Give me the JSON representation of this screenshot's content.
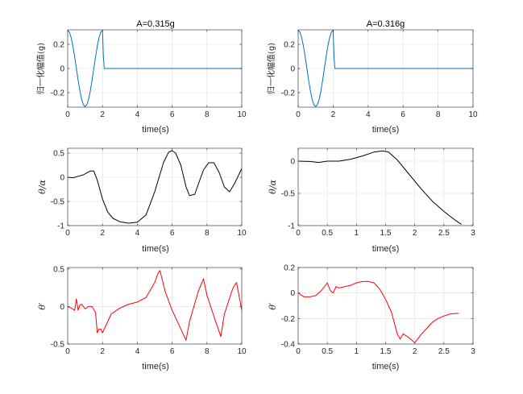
{
  "figure": {
    "background": "#ffffff"
  },
  "chart_data": [
    {
      "type": "line",
      "title": "A=0.315g",
      "xlabel": "time(s)",
      "ylabel": "归一化幅值(g)",
      "xlim": [
        0,
        10
      ],
      "ylim": [
        -0.32,
        0.32
      ],
      "xticks": [
        0,
        2,
        4,
        6,
        8,
        10
      ],
      "yticks": [
        -0.2,
        0,
        0.2
      ],
      "xtick_labels": [
        "0",
        "2",
        "4",
        "6",
        "8",
        "10"
      ],
      "ytick_labels": [
        "-0.2",
        "0",
        "0.2"
      ],
      "grid": true,
      "series": [
        {
          "color": "#0072BD",
          "x": [
            0,
            0.1,
            0.2,
            0.3,
            0.4,
            0.5,
            0.6,
            0.7,
            0.8,
            0.9,
            1.0,
            1.1,
            1.2,
            1.3,
            1.4,
            1.5,
            1.6,
            1.7,
            1.8,
            1.9,
            2.0,
            2.05,
            2.1,
            3,
            4,
            5,
            6,
            7,
            8,
            9,
            10
          ],
          "y": [
            0.315,
            0.3,
            0.255,
            0.185,
            0.097,
            0.0,
            -0.097,
            -0.185,
            -0.255,
            -0.3,
            -0.315,
            -0.3,
            -0.255,
            -0.185,
            -0.097,
            0.0,
            0.097,
            0.185,
            0.255,
            0.3,
            0.315,
            0.1,
            0,
            0,
            0,
            0,
            0,
            0,
            0,
            0,
            0
          ]
        }
      ]
    },
    {
      "type": "line",
      "title": "A=0.316g",
      "xlabel": "time(s)",
      "ylabel": "归一化幅值(g)",
      "xlim": [
        0,
        10
      ],
      "ylim": [
        -0.32,
        0.32
      ],
      "xticks": [
        0,
        2,
        4,
        6,
        8,
        10
      ],
      "yticks": [
        -0.2,
        0,
        0.2
      ],
      "xtick_labels": [
        "0",
        "2",
        "4",
        "6",
        "8",
        "10"
      ],
      "ytick_labels": [
        "-0.2",
        "0",
        "0.2"
      ],
      "grid": true,
      "series": [
        {
          "color": "#0072BD",
          "x": [
            0,
            0.1,
            0.2,
            0.3,
            0.4,
            0.5,
            0.6,
            0.7,
            0.8,
            0.9,
            1.0,
            1.1,
            1.2,
            1.3,
            1.4,
            1.5,
            1.6,
            1.7,
            1.8,
            1.9,
            2.0,
            2.05,
            2.1,
            3,
            4,
            5,
            6,
            7,
            8,
            9,
            10
          ],
          "y": [
            0.316,
            0.301,
            0.256,
            0.186,
            0.098,
            0.0,
            -0.098,
            -0.186,
            -0.256,
            -0.301,
            -0.316,
            -0.301,
            -0.256,
            -0.186,
            -0.098,
            0.0,
            0.098,
            0.186,
            0.256,
            0.301,
            0.316,
            0.1,
            0,
            0,
            0,
            0,
            0,
            0,
            0,
            0,
            0
          ]
        }
      ]
    },
    {
      "type": "line",
      "title": "",
      "xlabel": "time(s)",
      "ylabel": "θ/α",
      "xlim": [
        0,
        10
      ],
      "ylim": [
        -1,
        0.6
      ],
      "xticks": [
        0,
        2,
        4,
        6,
        8,
        10
      ],
      "yticks": [
        -1,
        -0.5,
        0,
        0.5
      ],
      "xtick_labels": [
        "0",
        "2",
        "4",
        "6",
        "8",
        "10"
      ],
      "ytick_labels": [
        "-1",
        "-0.5",
        "0",
        "0.5"
      ],
      "grid": true,
      "series": [
        {
          "color": "#000000",
          "x": [
            0,
            0.3,
            0.6,
            0.9,
            1.1,
            1.3,
            1.5,
            1.7,
            2.0,
            2.3,
            2.6,
            3.0,
            3.5,
            4.0,
            4.5,
            5.0,
            5.5,
            5.8,
            6.0,
            6.2,
            6.5,
            6.8,
            7.0,
            7.3,
            7.5,
            7.8,
            8.1,
            8.4,
            8.7,
            9.0,
            9.3,
            9.6,
            10
          ],
          "y": [
            0,
            -0.01,
            0.02,
            0.05,
            0.09,
            0.13,
            0.13,
            -0.06,
            -0.45,
            -0.72,
            -0.85,
            -0.92,
            -0.95,
            -0.93,
            -0.78,
            -0.3,
            0.3,
            0.52,
            0.55,
            0.5,
            0.25,
            -0.2,
            -0.38,
            -0.35,
            -0.15,
            0.15,
            0.3,
            0.3,
            0.1,
            -0.2,
            -0.3,
            -0.12,
            0.18
          ]
        }
      ]
    },
    {
      "type": "line",
      "title": "",
      "xlabel": "time(s)",
      "ylabel": "θ/α",
      "xlim": [
        0,
        3
      ],
      "ylim": [
        -1,
        0.2
      ],
      "xticks": [
        0,
        0.5,
        1,
        1.5,
        2,
        2.5,
        3
      ],
      "yticks": [
        -1,
        -0.5,
        0
      ],
      "xtick_labels": [
        "0",
        "0.5",
        "1",
        "1.5",
        "2",
        "2.5",
        "3"
      ],
      "ytick_labels": [
        "-1",
        "-0.5",
        "0"
      ],
      "grid": true,
      "series": [
        {
          "color": "#000000",
          "x": [
            0,
            0.2,
            0.35,
            0.5,
            0.7,
            0.9,
            1.1,
            1.3,
            1.45,
            1.55,
            1.7,
            1.9,
            2.1,
            2.3,
            2.5,
            2.7,
            2.8
          ],
          "y": [
            0,
            -0.005,
            -0.02,
            0.0,
            0.0,
            0.03,
            0.08,
            0.14,
            0.16,
            0.14,
            0.02,
            -0.2,
            -0.42,
            -0.62,
            -0.78,
            -0.92,
            -0.98
          ]
        }
      ]
    },
    {
      "type": "line",
      "title": "",
      "xlabel": "time(s)",
      "ylabel": "θ′",
      "xlim": [
        0,
        10
      ],
      "ylim": [
        -0.5,
        0.52
      ],
      "xticks": [
        0,
        2,
        4,
        6,
        8,
        10
      ],
      "yticks": [
        -0.5,
        0,
        0.5
      ],
      "xtick_labels": [
        "0",
        "2",
        "4",
        "6",
        "8",
        "10"
      ],
      "ytick_labels": [
        "-0.5",
        "0",
        "0.5"
      ],
      "grid": true,
      "series": [
        {
          "color": "#FF0000",
          "x": [
            0,
            0.2,
            0.4,
            0.5,
            0.6,
            0.7,
            0.8,
            1.0,
            1.2,
            1.4,
            1.6,
            1.7,
            1.8,
            1.9,
            2.0,
            2.5,
            3.0,
            3.5,
            4.0,
            4.5,
            5.0,
            5.2,
            5.3,
            5.6,
            6.0,
            6.4,
            6.8,
            7.0,
            7.5,
            7.8,
            8.0,
            8.5,
            8.8,
            9.0,
            9.5,
            9.7,
            10
          ],
          "y": [
            0,
            -0.02,
            -0.05,
            0.1,
            -0.05,
            0.02,
            0.03,
            -0.03,
            0.0,
            0.0,
            -0.08,
            -0.35,
            -0.3,
            -0.3,
            -0.35,
            -0.1,
            -0.02,
            0.03,
            0.06,
            0.12,
            0.32,
            0.45,
            0.48,
            0.2,
            -0.05,
            -0.25,
            -0.45,
            -0.2,
            0.2,
            0.37,
            0.15,
            -0.2,
            -0.4,
            -0.1,
            0.25,
            0.32,
            -0.05
          ]
        }
      ]
    },
    {
      "type": "line",
      "title": "",
      "xlabel": "time(s)",
      "ylabel": "θ′",
      "xlim": [
        0,
        3
      ],
      "ylim": [
        -0.4,
        0.2
      ],
      "xticks": [
        0,
        0.5,
        1,
        1.5,
        2,
        2.5,
        3
      ],
      "yticks": [
        -0.4,
        -0.2,
        0,
        0.2
      ],
      "xtick_labels": [
        "0",
        "0.5",
        "1",
        "1.5",
        "2",
        "2.5",
        "3"
      ],
      "ytick_labels": [
        "-0.4",
        "-0.2",
        "0",
        "0.2"
      ],
      "grid": true,
      "series": [
        {
          "color": "#FF0000",
          "x": [
            0,
            0.1,
            0.2,
            0.3,
            0.4,
            0.45,
            0.5,
            0.55,
            0.6,
            0.65,
            0.7,
            0.8,
            0.9,
            1.0,
            1.1,
            1.2,
            1.3,
            1.4,
            1.5,
            1.6,
            1.7,
            1.75,
            1.8,
            1.9,
            2.0,
            2.1,
            2.2,
            2.3,
            2.4,
            2.5,
            2.6,
            2.7,
            2.75
          ],
          "y": [
            0,
            -0.03,
            -0.03,
            -0.02,
            0.02,
            0.05,
            0.08,
            0.02,
            0.0,
            0.05,
            0.04,
            0.05,
            0.06,
            0.08,
            0.09,
            0.09,
            0.08,
            0.03,
            -0.05,
            -0.15,
            -0.32,
            -0.36,
            -0.32,
            -0.35,
            -0.39,
            -0.33,
            -0.28,
            -0.23,
            -0.2,
            -0.18,
            -0.165,
            -0.16,
            -0.16
          ]
        }
      ]
    }
  ]
}
